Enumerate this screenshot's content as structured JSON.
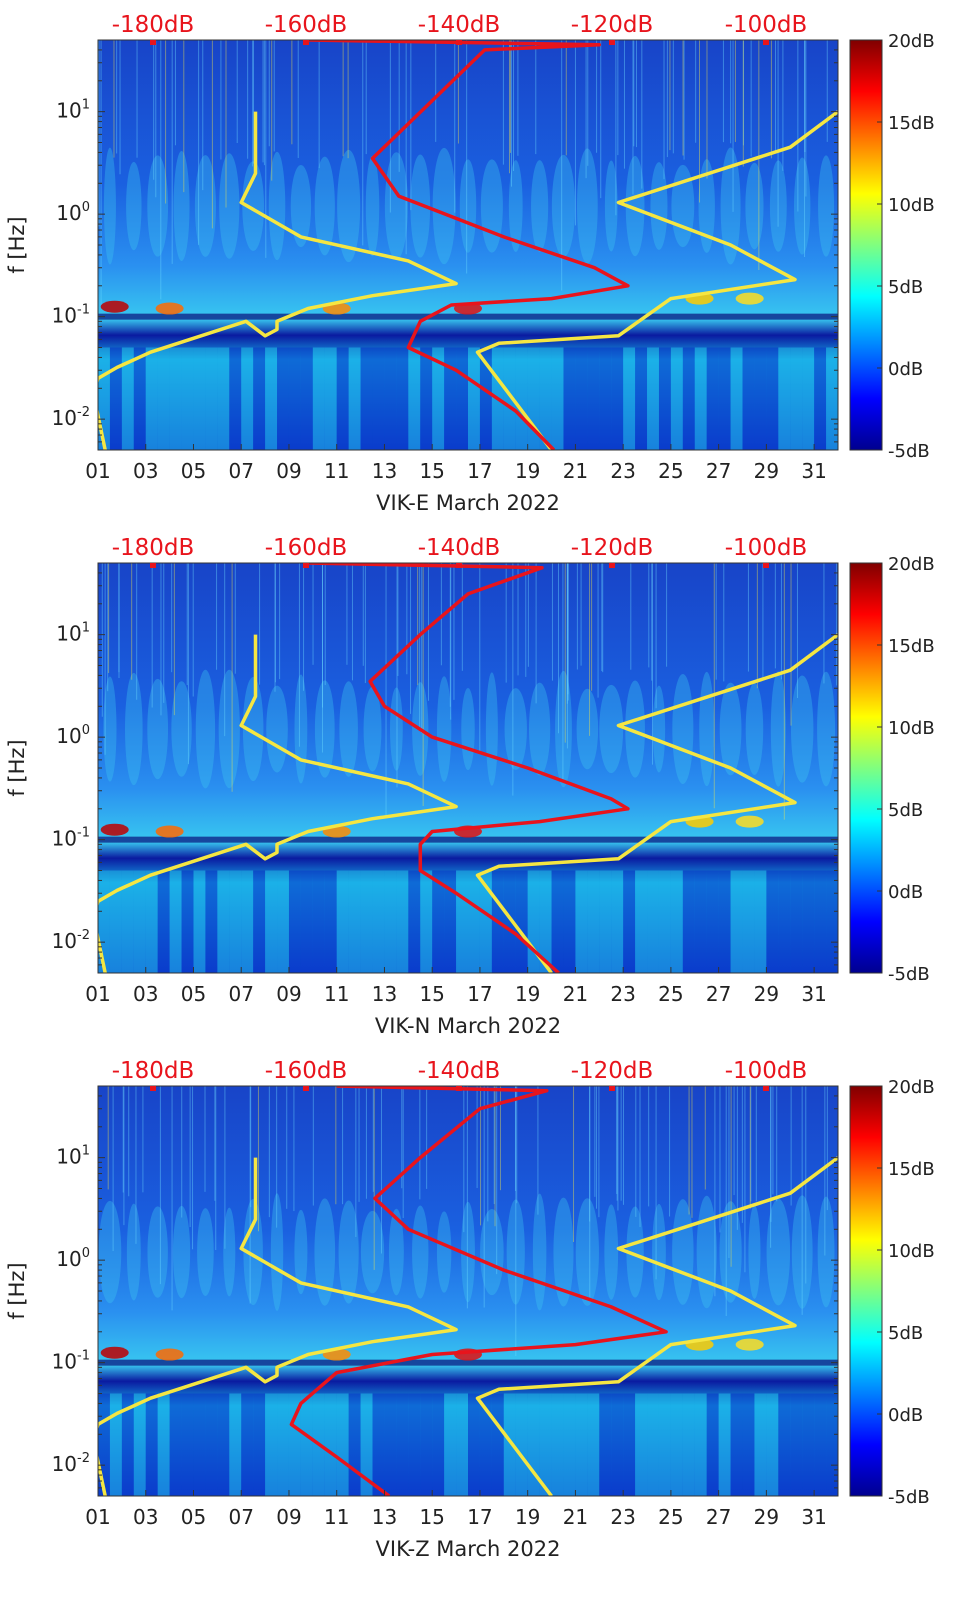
{
  "chart_data": [
    {
      "type": "heatmap",
      "xlabel": "VIK-E March 2022",
      "ylabel": "f [Hz]",
      "x_ticks": [
        "01",
        "03",
        "05",
        "07",
        "09",
        "11",
        "13",
        "15",
        "17",
        "19",
        "21",
        "23",
        "25",
        "27",
        "29",
        "31"
      ],
      "y_ticks": [
        "10-2",
        "100",
        "101",
        "10-1"
      ],
      "y_scale": "log",
      "ylim": [
        0.005,
        50
      ],
      "xlim": [
        1,
        32
      ],
      "top_axis_labels": [
        "-180dB",
        "-160dB",
        "-140dB",
        "-120dB",
        "-100dB"
      ],
      "colorbar": {
        "labels": [
          "20dB",
          "15dB",
          "10dB",
          "5dB",
          "0dB",
          "-5dB"
        ],
        "range": [
          -5,
          20
        ],
        "colormap": "jet"
      },
      "grid": false,
      "noise_model_lines": [
        {
          "color": "#f5e642",
          "points": [
            [
              7.6,
              10
            ],
            [
              7.6,
              2.5
            ],
            [
              7.0,
              1.3
            ],
            [
              9.5,
              0.6
            ],
            [
              14.0,
              0.35
            ],
            [
              16.0,
              0.21
            ],
            [
              12.5,
              0.16
            ],
            [
              9.8,
              0.12
            ],
            [
              8.5,
              0.09
            ],
            [
              8.5,
              0.075
            ],
            [
              8.0,
              0.065
            ],
            [
              7.2,
              0.09
            ],
            [
              3.2,
              0.045
            ],
            [
              1.8,
              0.032
            ],
            [
              1.0,
              0.025
            ],
            [
              0.8,
              0.018
            ],
            [
              1.3,
              0.005
            ]
          ]
        },
        {
          "color": "#f5e642",
          "points": [
            [
              32,
              10
            ],
            [
              30,
              4.5
            ],
            [
              22.8,
              1.3
            ],
            [
              27.5,
              0.5
            ],
            [
              30.2,
              0.23
            ],
            [
              25.0,
              0.15
            ],
            [
              22.8,
              0.065
            ],
            [
              17.8,
              0.055
            ],
            [
              16.9,
              0.045
            ],
            [
              20.0,
              0.005
            ]
          ]
        }
      ],
      "integrated_model_line": {
        "color": "#e8141c",
        "points": [
          [
            9.8,
            50
          ],
          [
            22.0,
            45
          ],
          [
            17.2,
            40
          ],
          [
            12.5,
            3.5
          ],
          [
            13.6,
            1.5
          ],
          [
            18.0,
            0.6
          ],
          [
            21.8,
            0.3
          ],
          [
            23.2,
            0.2
          ],
          [
            20.0,
            0.15
          ],
          [
            15.8,
            0.13
          ],
          [
            14.5,
            0.09
          ],
          [
            14.0,
            0.05
          ],
          [
            16.0,
            0.03
          ],
          [
            18.5,
            0.012
          ],
          [
            20.1,
            0.005
          ]
        ]
      }
    },
    {
      "type": "heatmap",
      "xlabel": "VIK-N March 2022",
      "ylabel": "f [Hz]",
      "x_ticks": [
        "01",
        "03",
        "05",
        "07",
        "09",
        "11",
        "13",
        "15",
        "17",
        "19",
        "21",
        "23",
        "25",
        "27",
        "29",
        "31"
      ],
      "y_ticks": [
        "10-2",
        "100",
        "101",
        "10-1"
      ],
      "y_scale": "log",
      "ylim": [
        0.005,
        50
      ],
      "xlim": [
        1,
        32
      ],
      "top_axis_labels": [
        "-180dB",
        "-160dB",
        "-140dB",
        "-120dB",
        "-100dB"
      ],
      "colorbar": {
        "labels": [
          "20dB",
          "15dB",
          "10dB",
          "5dB",
          "0dB",
          "-5dB"
        ],
        "range": [
          -5,
          20
        ],
        "colormap": "jet"
      },
      "grid": false,
      "noise_model_lines": [
        {
          "color": "#f5e642",
          "points": [
            [
              7.6,
              10
            ],
            [
              7.6,
              2.5
            ],
            [
              7.0,
              1.3
            ],
            [
              9.5,
              0.6
            ],
            [
              14.0,
              0.35
            ],
            [
              16.0,
              0.21
            ],
            [
              12.5,
              0.16
            ],
            [
              9.8,
              0.12
            ],
            [
              8.5,
              0.09
            ],
            [
              8.5,
              0.075
            ],
            [
              8.0,
              0.065
            ],
            [
              7.2,
              0.09
            ],
            [
              3.2,
              0.045
            ],
            [
              1.8,
              0.032
            ],
            [
              1.0,
              0.025
            ],
            [
              0.8,
              0.018
            ],
            [
              1.3,
              0.005
            ]
          ]
        },
        {
          "color": "#f5e642",
          "points": [
            [
              32,
              10
            ],
            [
              30,
              4.5
            ],
            [
              22.8,
              1.3
            ],
            [
              27.5,
              0.5
            ],
            [
              30.2,
              0.23
            ],
            [
              25.0,
              0.15
            ],
            [
              22.8,
              0.065
            ],
            [
              17.8,
              0.055
            ],
            [
              16.9,
              0.045
            ],
            [
              20.0,
              0.005
            ]
          ]
        }
      ],
      "integrated_model_line": {
        "color": "#e8141c",
        "points": [
          [
            9.8,
            50
          ],
          [
            19.6,
            45
          ],
          [
            16.5,
            25
          ],
          [
            14.5,
            10
          ],
          [
            12.4,
            3.5
          ],
          [
            13.0,
            2.0
          ],
          [
            15.0,
            1.0
          ],
          [
            19.0,
            0.5
          ],
          [
            22.5,
            0.25
          ],
          [
            23.2,
            0.2
          ],
          [
            19.5,
            0.15
          ],
          [
            15.0,
            0.12
          ],
          [
            14.5,
            0.09
          ],
          [
            14.5,
            0.05
          ],
          [
            16.0,
            0.03
          ],
          [
            18.5,
            0.012
          ],
          [
            20.3,
            0.005
          ]
        ]
      }
    },
    {
      "type": "heatmap",
      "xlabel": "VIK-Z March 2022",
      "ylabel": "f [Hz]",
      "x_ticks": [
        "01",
        "03",
        "05",
        "07",
        "09",
        "11",
        "13",
        "15",
        "17",
        "19",
        "21",
        "23",
        "25",
        "27",
        "29",
        "31"
      ],
      "y_ticks": [
        "10-2",
        "100",
        "101",
        "10-1"
      ],
      "y_scale": "log",
      "ylim": [
        0.005,
        50
      ],
      "xlim": [
        1,
        32
      ],
      "top_axis_labels": [
        "-180dB",
        "-160dB",
        "-140dB",
        "-120dB",
        "-100dB"
      ],
      "colorbar": {
        "labels": [
          "20dB",
          "15dB",
          "10dB",
          "5dB",
          "0dB",
          "-5dB"
        ],
        "range": [
          -5,
          20
        ],
        "colormap": "jet"
      },
      "grid": false,
      "noise_model_lines": [
        {
          "color": "#f5e642",
          "points": [
            [
              7.6,
              10
            ],
            [
              7.6,
              2.5
            ],
            [
              7.0,
              1.3
            ],
            [
              9.5,
              0.6
            ],
            [
              14.0,
              0.35
            ],
            [
              16.0,
              0.21
            ],
            [
              12.5,
              0.16
            ],
            [
              9.8,
              0.12
            ],
            [
              8.5,
              0.09
            ],
            [
              8.5,
              0.075
            ],
            [
              8.0,
              0.065
            ],
            [
              7.2,
              0.09
            ],
            [
              3.2,
              0.045
            ],
            [
              1.8,
              0.032
            ],
            [
              1.0,
              0.025
            ],
            [
              0.8,
              0.018
            ],
            [
              1.3,
              0.005
            ]
          ]
        },
        {
          "color": "#f5e642",
          "points": [
            [
              32,
              10
            ],
            [
              30,
              4.5
            ],
            [
              22.8,
              1.3
            ],
            [
              27.5,
              0.5
            ],
            [
              30.2,
              0.23
            ],
            [
              25.0,
              0.15
            ],
            [
              22.8,
              0.065
            ],
            [
              17.8,
              0.055
            ],
            [
              16.9,
              0.045
            ],
            [
              20.0,
              0.005
            ]
          ]
        }
      ],
      "integrated_model_line": {
        "color": "#e8141c",
        "points": [
          [
            11.0,
            50
          ],
          [
            19.8,
            45
          ],
          [
            17.0,
            30
          ],
          [
            14.5,
            10
          ],
          [
            12.6,
            4.0
          ],
          [
            14.0,
            2.0
          ],
          [
            18.0,
            0.8
          ],
          [
            22.5,
            0.35
          ],
          [
            24.8,
            0.2
          ],
          [
            21.0,
            0.15
          ],
          [
            15.0,
            0.12
          ],
          [
            11.0,
            0.08
          ],
          [
            9.5,
            0.04
          ],
          [
            9.1,
            0.025
          ],
          [
            11.0,
            0.012
          ],
          [
            13.2,
            0.005
          ]
        ]
      }
    }
  ]
}
